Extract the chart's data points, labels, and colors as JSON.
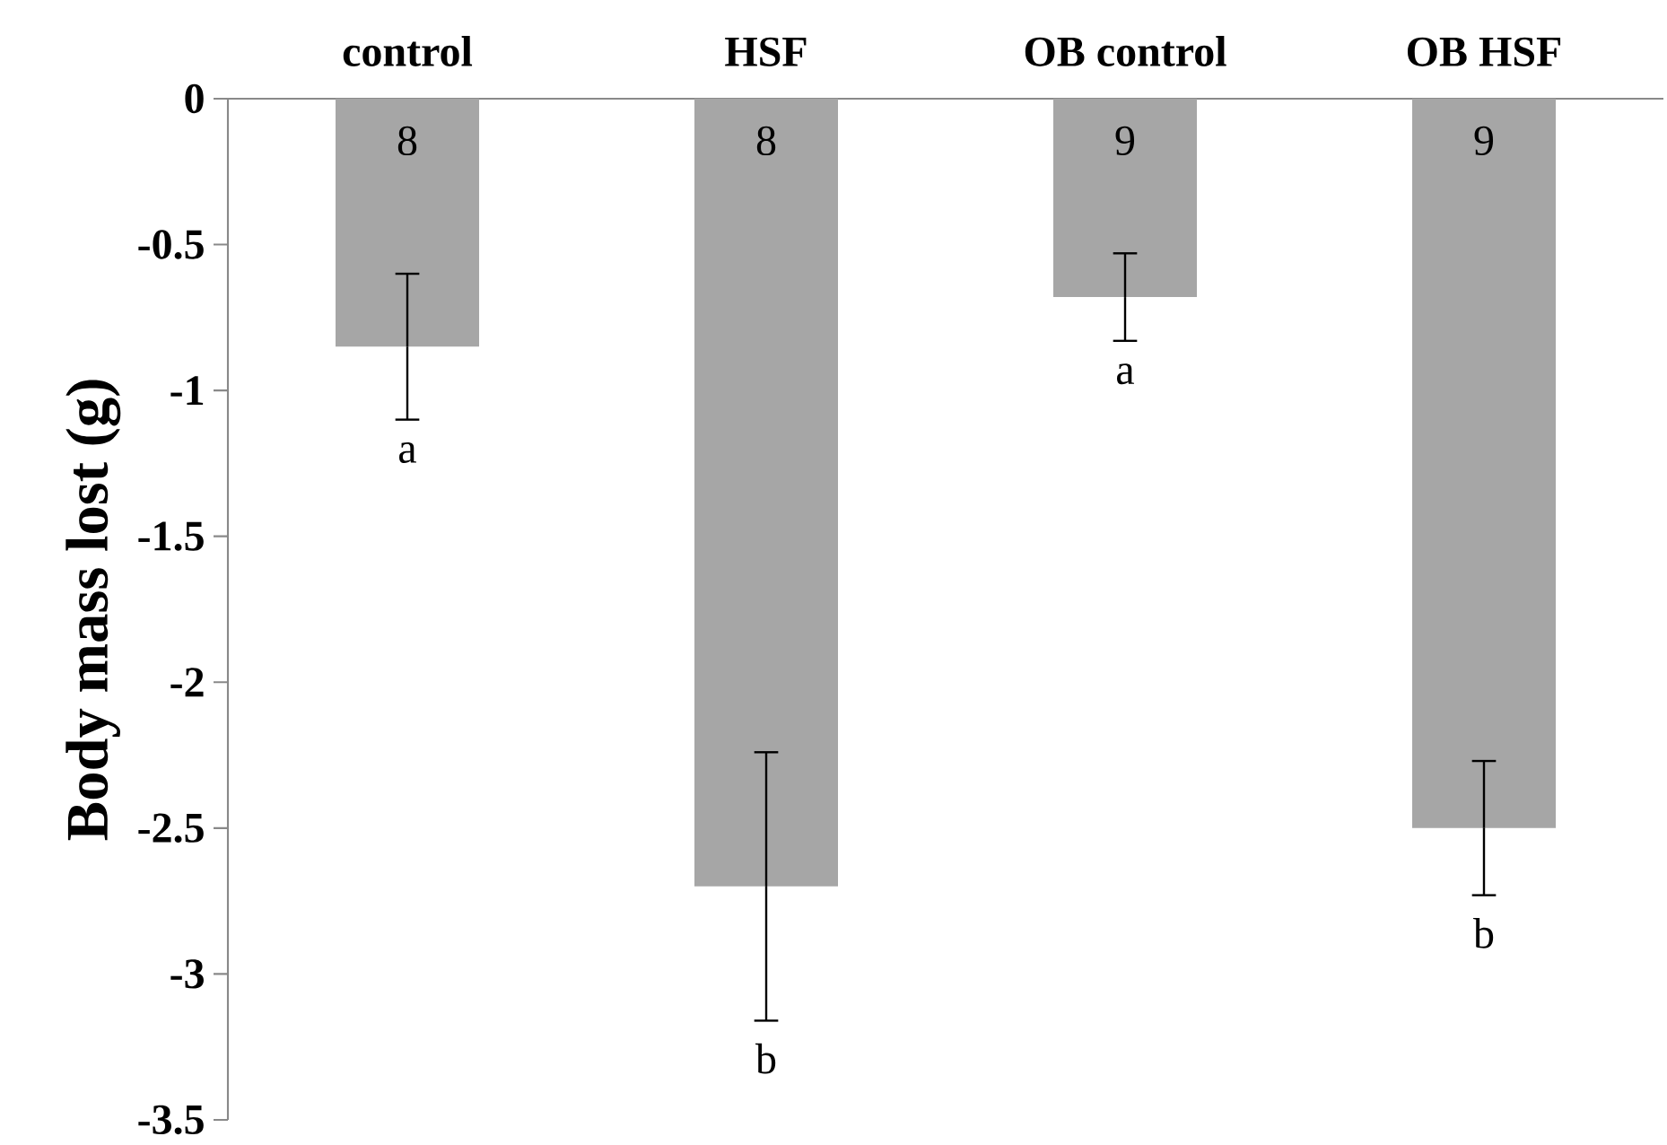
{
  "chart_data": {
    "type": "bar",
    "ylabel": "Body mass lost (g)",
    "categories": [
      "control",
      "HSF",
      "OB control",
      "OB HSF"
    ],
    "values": [
      -0.85,
      -2.7,
      -0.68,
      -2.5
    ],
    "errors": [
      0.25,
      0.46,
      0.15,
      0.23
    ],
    "color": "#a6a6a6",
    "ylim": [
      -3.5,
      0
    ],
    "yticks": [
      0,
      -0.5,
      -1,
      -1.5,
      -2,
      -2.5,
      -3,
      -3.5
    ],
    "annotations": [
      "8",
      "8",
      "9",
      "9",
      "a",
      "b",
      "a",
      "b"
    ]
  }
}
